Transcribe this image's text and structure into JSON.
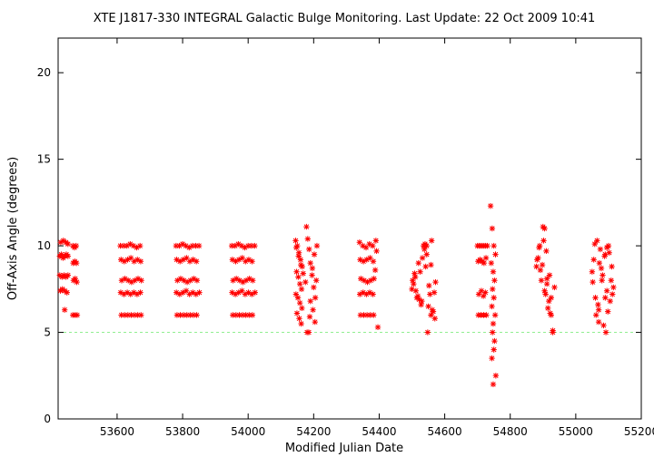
{
  "chart_data": {
    "type": "scatter",
    "title": "XTE J1817-330   INTEGRAL Galactic Bulge Monitoring.  Last Update: 22 Oct 2009 10:41",
    "xlabel": "Modified Julian Date",
    "ylabel": "Off-Axis Angle (degrees)",
    "xlim": [
      53420,
      55200
    ],
    "ylim": [
      0,
      22
    ],
    "xticks": [
      53600,
      53800,
      54000,
      54200,
      54400,
      54600,
      54800,
      55000,
      55200
    ],
    "yticks": [
      0,
      5,
      10,
      15,
      20
    ],
    "reference_line": {
      "y": 5,
      "color": "#90ee90",
      "style": "dashed"
    },
    "marker_color": "#ff0000",
    "marker": "asterisk",
    "grid": false,
    "series": [
      {
        "values_x": [
          53425,
          53430,
          53435,
          53440,
          53445,
          53450,
          53425,
          53432,
          53438,
          53444,
          53450,
          53427,
          53433,
          53440,
          53447,
          53428,
          53436,
          53444,
          53450,
          53440,
          53465,
          53470,
          53475,
          53466,
          53471,
          53476,
          53467,
          53472,
          53477,
          53465,
          53472,
          53478,
          53610,
          53620,
          53630,
          53640,
          53650,
          53660,
          53670,
          53612,
          53622,
          53632,
          53642,
          53652,
          53662,
          53672,
          53614,
          53624,
          53634,
          53644,
          53654,
          53664,
          53674,
          53611,
          53621,
          53631,
          53641,
          53651,
          53661,
          53671,
          53613,
          53623,
          53633,
          53643,
          53653,
          53663,
          53673,
          53780,
          53790,
          53800,
          53810,
          53820,
          53830,
          53840,
          53850,
          53782,
          53792,
          53802,
          53812,
          53822,
          53832,
          53842,
          53784,
          53794,
          53804,
          53814,
          53824,
          53834,
          53844,
          53781,
          53791,
          53801,
          53811,
          53821,
          53831,
          53841,
          53851,
          53783,
          53793,
          53803,
          53813,
          53823,
          53833,
          53843,
          53950,
          53960,
          53970,
          53980,
          53990,
          54000,
          54010,
          54020,
          53952,
          53962,
          53972,
          53982,
          53992,
          54002,
          54012,
          53954,
          53964,
          53974,
          53984,
          53994,
          54004,
          54014,
          53951,
          53961,
          53971,
          53981,
          53991,
          54001,
          54011,
          54021,
          53953,
          53963,
          53973,
          53983,
          53993,
          54003,
          54013,
          54145,
          54150,
          54155,
          54160,
          54165,
          54148,
          54153,
          54158,
          54163,
          54146,
          54152,
          54158,
          54164,
          54149,
          54156,
          54162,
          54147,
          54154,
          54161,
          54168,
          54175,
          54178,
          54180,
          54185,
          54182,
          54186,
          54190,
          54195,
          54200,
          54205,
          54198,
          54204,
          54210,
          54202,
          54196,
          54208,
          54190,
          54188,
          54340,
          54350,
          54360,
          54370,
          54380,
          54390,
          54342,
          54352,
          54362,
          54372,
          54382,
          54344,
          54354,
          54364,
          54374,
          54384,
          54341,
          54351,
          54361,
          54371,
          54381,
          54343,
          54353,
          54363,
          54373,
          54383,
          54392,
          54396,
          54388,
          54500,
          54505,
          54510,
          54515,
          54520,
          54525,
          54530,
          54535,
          54540,
          54545,
          54550,
          54555,
          54560,
          54565,
          54570,
          54502,
          54512,
          54522,
          54532,
          54542,
          54552,
          54562,
          54572,
          54508,
          54518,
          54528,
          54538,
          54548,
          54558,
          54568,
          54545,
          54558,
          54700,
          54705,
          54710,
          54715,
          54720,
          54725,
          54730,
          54702,
          54708,
          54714,
          54720,
          54726,
          54704,
          54712,
          54718,
          54724,
          54703,
          54711,
          54719,
          54727,
          54740,
          54745,
          54750,
          54755,
          54742,
          54748,
          54752,
          54746,
          54750,
          54744,
          54754,
          54748,
          54746,
          54752,
          54750,
          54744,
          54756,
          54748,
          54880,
          54885,
          54890,
          54895,
          54900,
          54905,
          54910,
          54915,
          54920,
          54925,
          54930,
          54882,
          54892,
          54902,
          54912,
          54922,
          54888,
          54898,
          54908,
          54918,
          54905,
          54912,
          54925,
          54935,
          54930,
          55050,
          55055,
          55060,
          55065,
          55070,
          55075,
          55080,
          55085,
          55090,
          55095,
          55100,
          55105,
          55110,
          55115,
          55052,
          55062,
          55072,
          55082,
          55092,
          55102,
          55112,
          55058,
          55068,
          55078,
          55088,
          55098,
          55108,
          55070,
          55090,
          55095
        ],
        "values_y": [
          9.4,
          9.5,
          9.3,
          9.4,
          9.5,
          9.4,
          8.3,
          8.2,
          8.3,
          8.2,
          8.3,
          7.4,
          7.5,
          7.4,
          7.3,
          10.2,
          10.3,
          10.2,
          10.1,
          6.3,
          10.0,
          9.9,
          10.0,
          9.0,
          9.1,
          9.0,
          8.0,
          8.1,
          7.9,
          6.0,
          6.0,
          6.0,
          10.0,
          10.0,
          10.0,
          10.1,
          10.0,
          9.9,
          10.0,
          9.2,
          9.1,
          9.2,
          9.3,
          9.1,
          9.2,
          9.1,
          8.0,
          8.1,
          8.0,
          7.9,
          8.0,
          8.1,
          8.0,
          7.3,
          7.2,
          7.3,
          7.2,
          7.3,
          7.2,
          7.3,
          6.0,
          6.0,
          6.0,
          6.0,
          6.0,
          6.0,
          6.0,
          10.0,
          10.0,
          10.1,
          10.0,
          9.9,
          10.0,
          10.0,
          10.0,
          9.2,
          9.1,
          9.2,
          9.3,
          9.1,
          9.2,
          9.1,
          8.0,
          8.1,
          8.0,
          7.9,
          8.0,
          8.1,
          8.0,
          7.3,
          7.2,
          7.3,
          7.4,
          7.2,
          7.3,
          7.2,
          7.3,
          6.0,
          6.0,
          6.0,
          6.0,
          6.0,
          6.0,
          6.0,
          10.0,
          10.0,
          10.1,
          10.0,
          9.9,
          10.0,
          10.0,
          10.0,
          9.2,
          9.1,
          9.2,
          9.3,
          9.1,
          9.2,
          9.1,
          8.0,
          8.1,
          8.0,
          7.9,
          8.0,
          8.1,
          8.0,
          7.3,
          7.2,
          7.3,
          7.4,
          7.2,
          7.3,
          7.2,
          7.3,
          6.0,
          6.0,
          6.0,
          6.0,
          6.0,
          6.0,
          6.0,
          10.3,
          10.0,
          9.6,
          9.2,
          8.8,
          8.5,
          8.2,
          7.8,
          7.5,
          7.2,
          7.0,
          6.7,
          6.4,
          6.1,
          5.8,
          5.5,
          9.9,
          9.4,
          8.9,
          8.4,
          7.9,
          11.1,
          5.0,
          5.0,
          10.4,
          9.8,
          9.0,
          8.3,
          7.6,
          7.0,
          6.3,
          5.6,
          10.0,
          9.5,
          8.7,
          8.0,
          6.8,
          5.9,
          10.2,
          10.0,
          9.9,
          10.1,
          10.0,
          10.3,
          9.2,
          9.1,
          9.2,
          9.3,
          9.1,
          8.1,
          8.0,
          7.9,
          8.0,
          8.1,
          7.2,
          7.3,
          7.2,
          7.3,
          7.2,
          6.0,
          6.0,
          6.0,
          6.0,
          6.0,
          9.7,
          5.3,
          8.6,
          7.5,
          7.8,
          8.2,
          7.0,
          9.0,
          8.5,
          6.8,
          10.0,
          10.1,
          9.5,
          6.5,
          7.2,
          10.3,
          6.2,
          5.8,
          8.0,
          7.4,
          6.9,
          9.3,
          8.8,
          7.7,
          6.3,
          7.9,
          8.4,
          7.1,
          6.6,
          9.8,
          5.0,
          8.9,
          7.3,
          10.0,
          6.0,
          10.0,
          10.0,
          10.0,
          10.0,
          10.0,
          10.0,
          10.0,
          9.1,
          9.2,
          9.1,
          9.0,
          9.3,
          7.2,
          7.4,
          7.1,
          7.3,
          6.0,
          6.0,
          6.0,
          6.0,
          12.3,
          11.0,
          10.0,
          9.5,
          9.0,
          8.5,
          8.0,
          7.5,
          7.0,
          6.5,
          6.0,
          5.5,
          5.0,
          4.5,
          4.0,
          3.5,
          2.5,
          2.0,
          8.8,
          9.3,
          10.0,
          8.0,
          11.1,
          7.4,
          9.7,
          6.4,
          8.3,
          7.0,
          5.1,
          9.2,
          8.6,
          10.3,
          7.8,
          6.1,
          9.9,
          8.9,
          7.2,
          6.8,
          11.0,
          8.1,
          6.0,
          7.6,
          5.0,
          8.5,
          9.2,
          7.0,
          10.3,
          6.3,
          9.8,
          8.0,
          5.4,
          9.5,
          7.4,
          10.0,
          6.8,
          8.8,
          7.6,
          7.9,
          6.0,
          9.0,
          8.3,
          5.0,
          9.6,
          7.2,
          10.1,
          6.6,
          8.7,
          9.4,
          6.2,
          8.0,
          5.6,
          7.0,
          9.9
        ]
      }
    ]
  }
}
